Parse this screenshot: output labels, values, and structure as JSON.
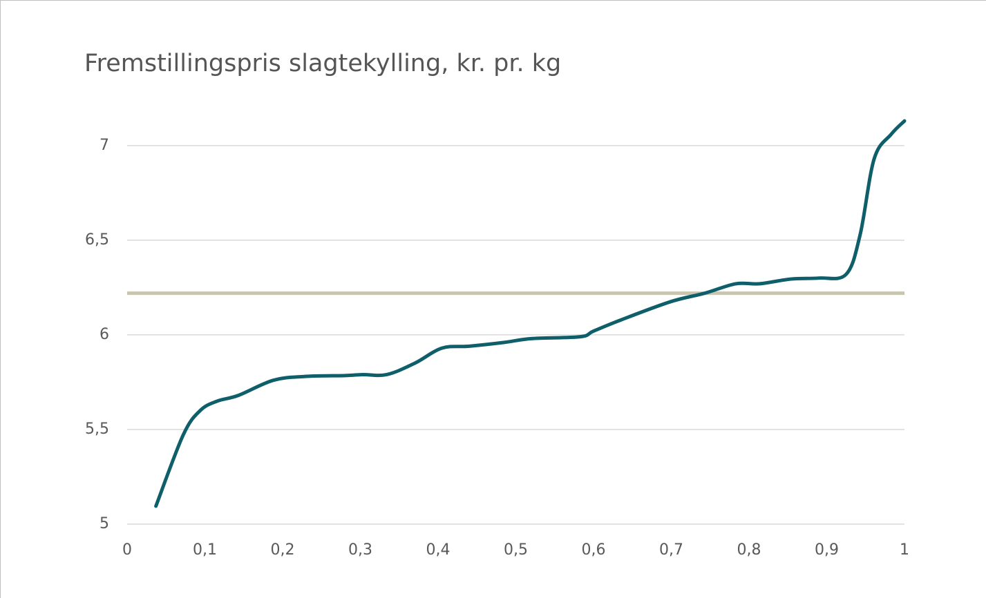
{
  "chart_data": {
    "type": "line",
    "title": "Fremstillingspris slagtekylling, kr. pr. kg",
    "x": [
      0.037,
      0.072,
      0.094,
      0.116,
      0.143,
      0.188,
      0.228,
      0.281,
      0.303,
      0.334,
      0.37,
      0.405,
      0.44,
      0.485,
      0.52,
      0.583,
      0.6,
      0.636,
      0.699,
      0.743,
      0.783,
      0.814,
      0.854,
      0.89,
      0.925,
      0.943,
      0.961,
      0.983,
      1.0
    ],
    "series": [
      {
        "color": "#0f5f6a",
        "values": [
          5.095,
          5.47,
          5.6,
          5.65,
          5.68,
          5.76,
          5.78,
          5.785,
          5.79,
          5.79,
          5.85,
          5.93,
          5.94,
          5.96,
          5.98,
          5.99,
          6.02,
          6.08,
          6.175,
          6.22,
          6.27,
          6.27,
          6.295,
          6.3,
          6.32,
          6.53,
          6.93,
          7.06,
          7.13
        ]
      }
    ],
    "reference_value": 6.22,
    "reference_color": "#c8c5b0",
    "xlim": [
      0,
      1
    ],
    "xticks": [
      0,
      {
        "value": 0.1,
        "label": "0,1"
      },
      {
        "value": 0.2,
        "label": "0,2"
      },
      {
        "value": 0.3,
        "label": "0,3"
      },
      {
        "value": 0.4,
        "label": "0,4"
      },
      {
        "value": 0.5,
        "label": "0,5"
      },
      {
        "value": 0.6,
        "label": "0,6"
      },
      {
        "value": 0.7,
        "label": "0,7"
      },
      {
        "value": 0.8,
        "label": "0,8"
      },
      {
        "value": 0.9,
        "label": "0,9"
      },
      1
    ],
    "ylim": [
      5,
      7.2
    ],
    "yticks": [
      5,
      {
        "value": 5.5,
        "label": "5,5"
      },
      6,
      {
        "value": 6.5,
        "label": "6,5"
      },
      7
    ],
    "grid": true
  }
}
